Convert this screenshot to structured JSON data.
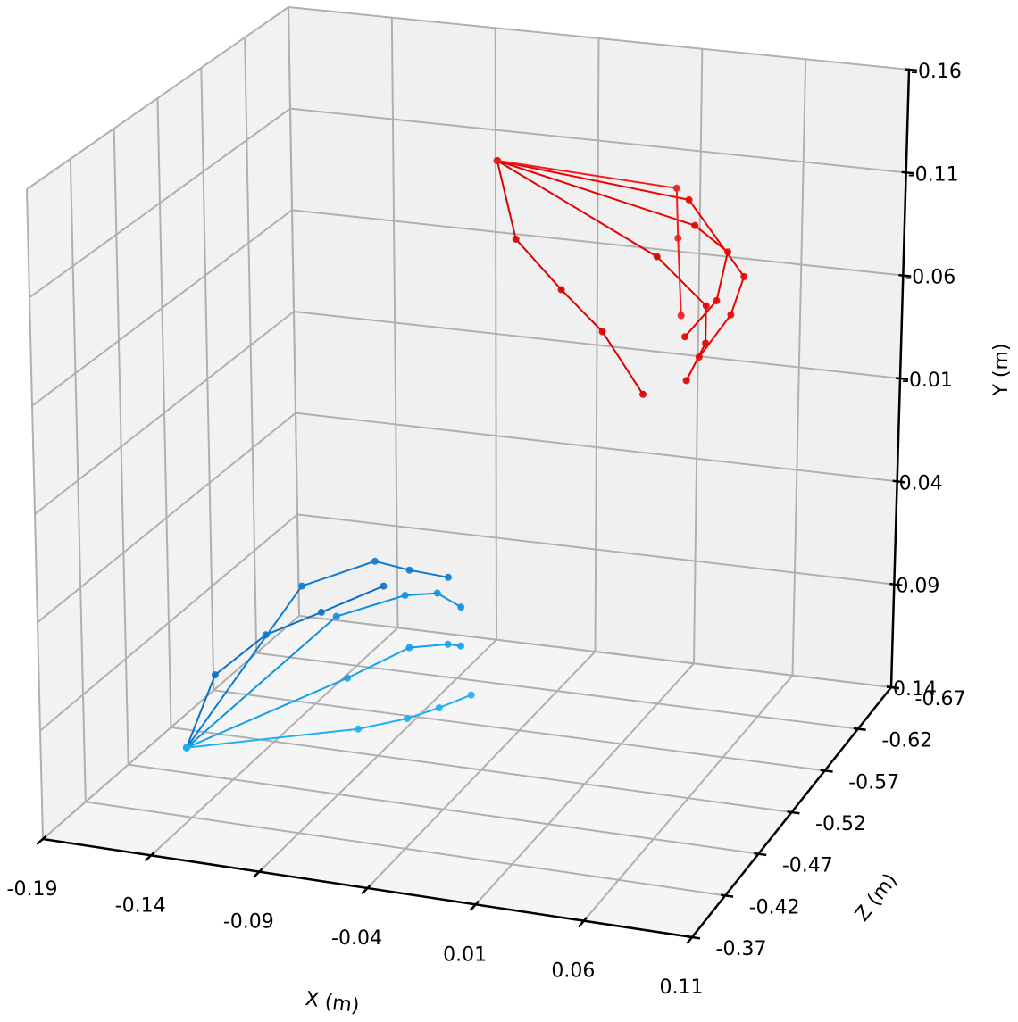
{
  "chart_data": {
    "type": "line3d",
    "xlabel": "X (m)",
    "ylabel": "Y (m)",
    "zlabel": "Z (m)",
    "xlim": [
      -0.19,
      0.11
    ],
    "xticks": [
      -0.19,
      -0.14,
      -0.09,
      -0.04,
      0.01,
      0.06,
      0.11
    ],
    "ylim": [
      0.14,
      -0.16
    ],
    "yticks": [
      0.14,
      0.09,
      0.04,
      -0.01,
      -0.06,
      -0.11,
      -0.16
    ],
    "zlim": [
      -0.37,
      -0.67
    ],
    "zticks": [
      -0.37,
      -0.42,
      -0.47,
      -0.52,
      -0.57,
      -0.62,
      -0.67
    ],
    "grid": true,
    "series": [
      {
        "color": "#d80000",
        "x": [
          -0.07,
          -0.061,
          -0.039,
          -0.019,
          0.001
        ],
        "y": [
          -0.113,
          -0.076,
          -0.054,
          -0.036,
          -0.008
        ],
        "z": [
          -0.62,
          -0.62,
          -0.62,
          -0.62,
          -0.62
        ]
      },
      {
        "color": "#e00000",
        "x": [
          -0.07,
          0.007,
          0.031,
          0.031,
          0.022
        ],
        "y": [
          -0.113,
          -0.075,
          -0.054,
          -0.036,
          -0.017
        ],
        "z": [
          -0.62,
          -0.62,
          -0.62,
          -0.62,
          -0.62
        ]
      },
      {
        "color": "#e80000",
        "x": [
          -0.07,
          0.025,
          0.041,
          0.036,
          0.021
        ],
        "y": [
          -0.113,
          -0.092,
          -0.081,
          -0.057,
          -0.038
        ],
        "z": [
          -0.62,
          -0.62,
          -0.62,
          -0.62,
          -0.62
        ]
      },
      {
        "color": "#f00000",
        "x": [
          -0.07,
          0.022,
          0.049,
          0.043,
          0.028
        ],
        "y": [
          -0.113,
          -0.104,
          -0.07,
          -0.051,
          -0.029
        ],
        "z": [
          -0.62,
          -0.62,
          -0.62,
          -0.62,
          -0.62
        ]
      },
      {
        "color": "#f51a1a",
        "x": [
          -0.07,
          0.016,
          0.017,
          0.019
        ],
        "y": [
          -0.113,
          -0.109,
          -0.085,
          -0.048
        ],
        "z": [
          -0.62,
          -0.62,
          -0.62,
          -0.62
        ]
      },
      {
        "color": "#0a6fc8",
        "x": [
          -0.154,
          -0.14,
          -0.116,
          -0.09,
          -0.061
        ],
        "y": [
          0.12,
          0.084,
          0.062,
          0.048,
          0.032
        ],
        "z": [
          -0.45,
          -0.45,
          -0.45,
          -0.45,
          -0.45
        ]
      },
      {
        "color": "#0b7ad4",
        "x": [
          -0.154,
          -0.099,
          -0.065,
          -0.049,
          -0.031
        ],
        "y": [
          0.12,
          0.037,
          0.021,
          0.023,
          0.024
        ],
        "z": [
          -0.45,
          -0.45,
          -0.45,
          -0.45,
          -0.45
        ]
      },
      {
        "color": "#1290e0",
        "x": [
          -0.154,
          -0.083,
          -0.051,
          -0.036,
          -0.025
        ],
        "y": [
          0.12,
          0.049,
          0.035,
          0.032,
          0.037
        ],
        "z": [
          -0.45,
          -0.45,
          -0.45,
          -0.45,
          -0.45
        ]
      },
      {
        "color": "#17a0ea",
        "x": [
          -0.154,
          -0.078,
          -0.049,
          -0.031,
          -0.025
        ],
        "y": [
          0.12,
          0.077,
          0.059,
          0.055,
          0.055
        ],
        "z": [
          -0.45,
          -0.45,
          -0.45,
          -0.45,
          -0.45
        ]
      },
      {
        "color": "#1eb0f4",
        "x": [
          -0.154,
          -0.073,
          -0.05,
          -0.035,
          -0.02
        ],
        "y": [
          0.12,
          0.1,
          0.092,
          0.085,
          0.077
        ],
        "z": [
          -0.45,
          -0.45,
          -0.45,
          -0.45,
          -0.45
        ]
      }
    ]
  }
}
